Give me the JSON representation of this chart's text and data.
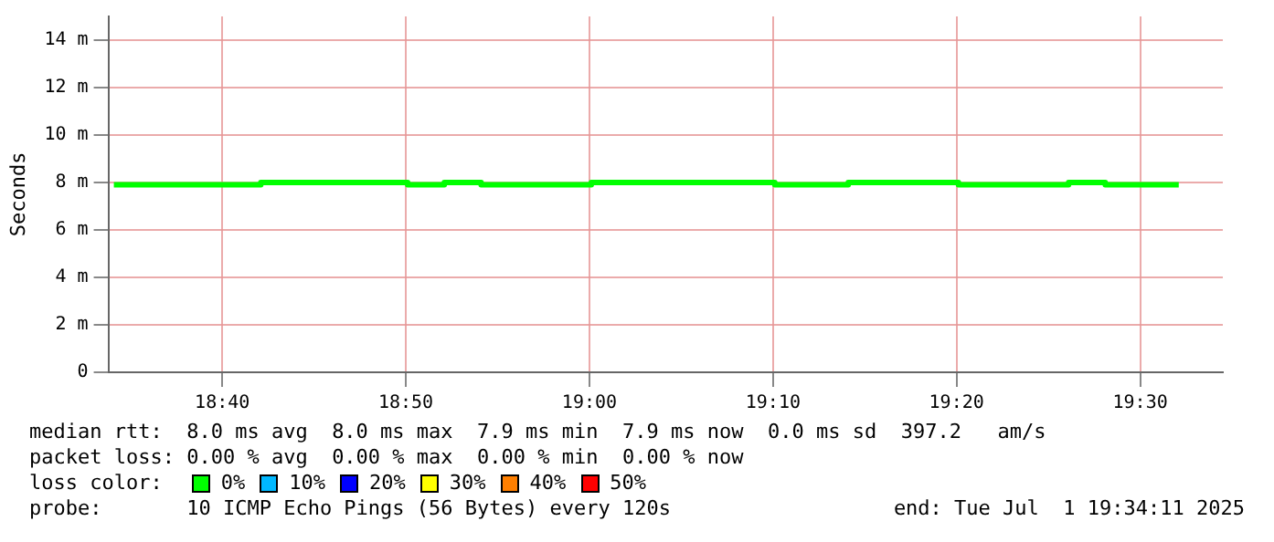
{
  "chart_data": {
    "type": "step",
    "ylabel": "Seconds",
    "x": [
      18.5683,
      18.6017,
      18.635,
      18.6683,
      18.7017,
      18.735,
      18.7683,
      18.8017,
      18.835,
      18.8683,
      18.9017,
      18.935,
      18.9683,
      19.0017,
      19.035,
      19.0683,
      19.1017,
      19.135,
      19.1683,
      19.2017,
      19.235,
      19.2683,
      19.3017,
      19.335,
      19.3683,
      19.4017,
      19.435,
      19.4683,
      19.5017,
      19.535
    ],
    "series": [
      {
        "color": "#00ff00",
        "values": [
          7.9,
          7.9,
          7.9,
          7.9,
          8.0,
          8.0,
          8.0,
          8.0,
          7.9,
          8.0,
          7.9,
          7.9,
          7.9,
          8.0,
          8.0,
          8.0,
          8.0,
          8.0,
          7.9,
          7.9,
          8.0,
          8.0,
          8.0,
          7.9,
          7.9,
          7.9,
          8.0,
          7.9,
          7.9,
          7.9
        ]
      }
    ],
    "xlim": [
      18.5633,
      19.575
    ],
    "xticks": [
      {
        "value": 18.6667,
        "label": "18:40"
      },
      {
        "value": 18.8333,
        "label": "18:50"
      },
      {
        "value": 19,
        "label": "19:00"
      },
      {
        "value": 19.1667,
        "label": "19:10"
      },
      {
        "value": 19.3333,
        "label": "19:20"
      },
      {
        "value": 19.5,
        "label": "19:30"
      }
    ],
    "ylim": [
      0,
      15
    ],
    "yticks": [
      0,
      {
        "value": 2,
        "label": "2 m"
      },
      {
        "value": 4,
        "label": "4 m"
      },
      {
        "value": 6,
        "label": "6 m"
      },
      {
        "value": 8,
        "label": "8 m"
      },
      {
        "value": 10,
        "label": "10 m"
      },
      {
        "value": 12,
        "label": "12 m"
      },
      {
        "value": 14,
        "label": "14 m"
      }
    ],
    "grid": true,
    "legend": false,
    "annotations": [
      "median rtt:  8.0 ms avg  8.0 ms max  7.9 ms min  7.9 ms now  0.0 ms sd  397.2   am/s",
      "packet loss: 0.00 % avg  0.00 % max  0.00 % min  0.00 % now",
      "loss color:",
      "0%",
      "10%",
      "20%",
      "30%",
      "40%",
      "50%",
      "probe:       10 ICMP Echo Pings (56 Bytes) every 120s",
      "end: Tue Jul  1 19:34:11 2025"
    ]
  }
}
